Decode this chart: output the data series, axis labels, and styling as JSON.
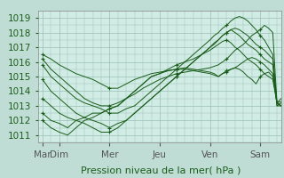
{
  "xlabel": "Pression niveau de la mer( hPa )",
  "bg_color": "#c0ddd5",
  "plot_bg_color": "#d0ece4",
  "line_color": "#1a5c1a",
  "grid_color": "#9abfb5",
  "ylim": [
    1010.5,
    1019.5
  ],
  "yticks": [
    1011,
    1012,
    1013,
    1014,
    1015,
    1016,
    1017,
    1018,
    1019
  ],
  "day_labels": [
    "Mar",
    "Dim",
    "Mer",
    "Jeu",
    "Ven",
    "Sam"
  ],
  "day_positions": [
    0,
    16,
    64,
    112,
    160,
    208
  ],
  "xlim": [
    -4,
    228
  ],
  "series": [
    {
      "x": [
        0,
        8,
        16,
        24,
        32,
        40,
        48,
        56,
        64,
        72,
        80,
        88,
        96,
        104,
        112,
        120,
        128,
        136,
        144,
        152,
        160,
        164,
        168,
        172,
        176,
        180,
        184,
        188,
        192,
        196,
        200,
        204,
        208,
        212,
        216,
        220,
        224,
        228
      ],
      "y": [
        1016.5,
        1016.2,
        1015.8,
        1015.5,
        1015.2,
        1015.0,
        1014.8,
        1014.5,
        1014.2,
        1014.2,
        1014.5,
        1014.8,
        1015.0,
        1015.2,
        1015.3,
        1015.4,
        1015.5,
        1015.5,
        1015.4,
        1015.3,
        1015.2,
        1015.1,
        1015.0,
        1015.2,
        1015.4,
        1015.5,
        1015.6,
        1015.5,
        1015.3,
        1015.0,
        1014.8,
        1014.5,
        1015.0,
        1015.2,
        1015.3,
        1015.0,
        1013.2,
        1013.0
      ]
    },
    {
      "x": [
        0,
        8,
        16,
        24,
        32,
        40,
        48,
        56,
        64,
        72,
        80,
        88,
        96,
        104,
        112,
        120,
        128,
        136,
        144,
        152,
        160,
        164,
        168,
        172,
        176,
        180,
        184,
        188,
        192,
        196,
        200,
        204,
        208,
        212,
        216,
        220,
        224,
        228
      ],
      "y": [
        1016.2,
        1015.5,
        1015.0,
        1014.5,
        1014.0,
        1013.5,
        1013.2,
        1013.0,
        1013.0,
        1013.2,
        1013.5,
        1013.8,
        1014.2,
        1014.5,
        1014.8,
        1015.0,
        1015.2,
        1015.3,
        1015.4,
        1015.5,
        1015.6,
        1015.7,
        1015.8,
        1016.0,
        1016.2,
        1016.5,
        1016.8,
        1017.0,
        1017.2,
        1017.5,
        1017.8,
        1018.0,
        1018.2,
        1018.5,
        1018.3,
        1018.0,
        1013.2,
        1013.0
      ]
    },
    {
      "x": [
        0,
        8,
        16,
        24,
        32,
        40,
        48,
        56,
        64,
        72,
        80,
        88,
        96,
        104,
        112,
        120,
        128,
        136,
        144,
        152,
        160,
        164,
        168,
        172,
        176,
        180,
        184,
        188,
        192,
        196,
        200,
        204,
        208,
        212,
        216,
        220,
        224,
        228
      ],
      "y": [
        1015.8,
        1015.0,
        1014.5,
        1014.0,
        1013.5,
        1013.2,
        1013.0,
        1012.8,
        1012.5,
        1012.5,
        1012.8,
        1013.0,
        1013.5,
        1014.0,
        1014.5,
        1015.0,
        1015.5,
        1016.0,
        1016.5,
        1017.0,
        1017.5,
        1017.8,
        1018.0,
        1018.3,
        1018.5,
        1018.8,
        1019.0,
        1019.1,
        1019.0,
        1018.8,
        1018.5,
        1018.2,
        1017.8,
        1017.5,
        1017.0,
        1016.5,
        1013.2,
        1013.0
      ]
    },
    {
      "x": [
        0,
        8,
        16,
        24,
        32,
        40,
        48,
        56,
        64,
        72,
        80,
        88,
        96,
        104,
        112,
        120,
        128,
        136,
        144,
        152,
        160,
        164,
        168,
        172,
        176,
        180,
        184,
        188,
        192,
        196,
        200,
        204,
        208,
        212,
        216,
        220,
        224,
        228
      ],
      "y": [
        1014.8,
        1014.0,
        1013.5,
        1013.0,
        1012.5,
        1012.2,
        1012.0,
        1011.8,
        1011.5,
        1011.8,
        1012.0,
        1012.5,
        1013.0,
        1013.5,
        1014.0,
        1014.5,
        1015.0,
        1015.5,
        1016.0,
        1016.5,
        1017.0,
        1017.3,
        1017.5,
        1017.8,
        1018.0,
        1018.2,
        1018.3,
        1018.2,
        1018.0,
        1017.8,
        1017.5,
        1017.2,
        1017.0,
        1016.8,
        1016.5,
        1016.2,
        1013.0,
        1013.0
      ]
    },
    {
      "x": [
        0,
        8,
        16,
        24,
        32,
        40,
        48,
        56,
        64,
        72,
        80,
        88,
        96,
        104,
        112,
        120,
        128,
        136,
        144,
        152,
        160,
        164,
        168,
        172,
        176,
        180,
        184,
        188,
        192,
        196,
        200,
        204,
        208,
        212,
        216,
        220,
        224,
        228
      ],
      "y": [
        1013.5,
        1013.0,
        1012.5,
        1012.2,
        1012.0,
        1011.8,
        1011.5,
        1011.2,
        1011.2,
        1011.5,
        1012.0,
        1012.5,
        1013.0,
        1013.5,
        1014.0,
        1014.5,
        1015.0,
        1015.5,
        1016.0,
        1016.5,
        1017.0,
        1017.2,
        1017.5,
        1017.8,
        1018.0,
        1018.2,
        1018.0,
        1017.8,
        1017.5,
        1017.2,
        1017.0,
        1016.8,
        1016.5,
        1016.2,
        1016.0,
        1015.8,
        1013.0,
        1013.2
      ]
    },
    {
      "x": [
        0,
        8,
        16,
        24,
        32,
        40,
        48,
        56,
        64,
        72,
        80,
        88,
        96,
        104,
        112,
        120,
        128,
        136,
        144,
        152,
        160,
        164,
        168,
        172,
        176,
        180,
        184,
        188,
        192,
        196,
        200,
        204,
        208,
        212,
        216,
        220,
        224,
        228
      ],
      "y": [
        1012.5,
        1012.0,
        1011.8,
        1011.5,
        1012.0,
        1012.2,
        1012.5,
        1012.5,
        1012.8,
        1013.0,
        1013.5,
        1014.0,
        1014.5,
        1015.0,
        1015.2,
        1015.4,
        1015.5,
        1015.6,
        1015.5,
        1015.4,
        1015.3,
        1015.2,
        1015.0,
        1015.2,
        1015.3,
        1015.5,
        1015.6,
        1015.8,
        1016.0,
        1016.2,
        1016.3,
        1016.2,
        1016.0,
        1015.8,
        1015.5,
        1015.2,
        1013.2,
        1013.3
      ]
    },
    {
      "x": [
        0,
        8,
        16,
        24,
        32,
        40,
        48,
        56,
        64,
        72,
        80,
        88,
        96,
        104,
        112,
        120,
        128,
        136,
        144,
        152,
        160,
        164,
        168,
        172,
        176,
        180,
        184,
        188,
        192,
        196,
        200,
        204,
        208,
        212,
        216,
        220,
        224,
        228
      ],
      "y": [
        1012.0,
        1011.5,
        1011.2,
        1011.0,
        1011.5,
        1012.0,
        1012.2,
        1012.5,
        1012.8,
        1013.0,
        1013.5,
        1014.0,
        1014.5,
        1015.0,
        1015.2,
        1015.5,
        1015.8,
        1016.0,
        1016.2,
        1016.5,
        1016.8,
        1017.0,
        1017.2,
        1017.4,
        1017.5,
        1017.3,
        1017.0,
        1016.8,
        1016.5,
        1016.2,
        1016.0,
        1015.8,
        1015.5,
        1015.2,
        1015.0,
        1014.8,
        1013.2,
        1013.5
      ]
    }
  ],
  "font_size": 8,
  "tick_font_size": 7.5,
  "marker_every": 8
}
